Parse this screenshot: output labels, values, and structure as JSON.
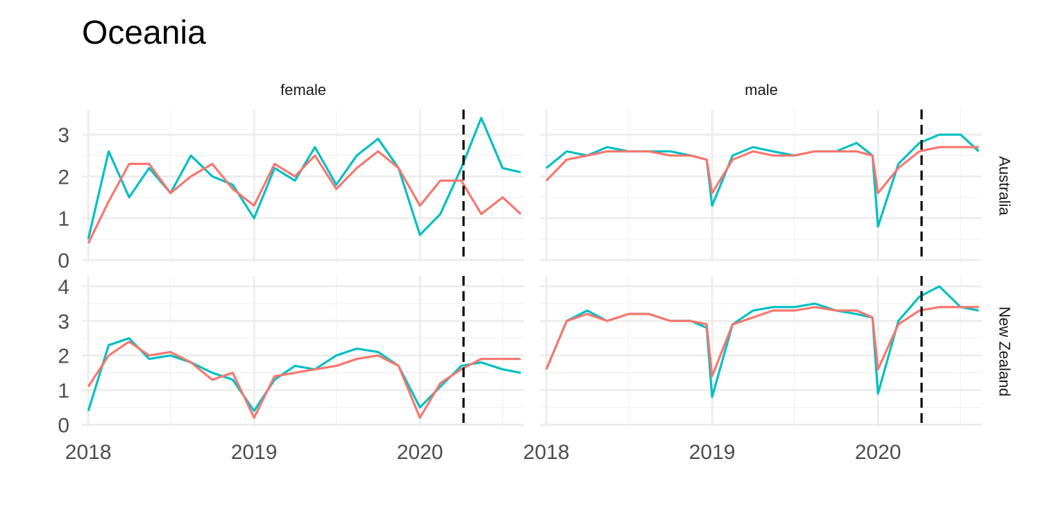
{
  "chart_data": {
    "type": "line",
    "title": "Oceania",
    "facets": {
      "columns": [
        "female",
        "male"
      ],
      "rows": [
        "Australia",
        "New Zealand"
      ]
    },
    "x_tick_labels": [
      "2018",
      "2019",
      "2020"
    ],
    "x_range": [
      "2018-01-01",
      "2020-08-10"
    ],
    "reference_line": {
      "date": "2020-04-06",
      "style": "dashed",
      "color": "#000000"
    },
    "series_colors": [
      "#00BFC4",
      "#F8766D"
    ],
    "panels": [
      {
        "column": "female",
        "row": "Australia",
        "y_ticks": [
          0,
          1,
          2,
          3
        ],
        "ylim": [
          -0.05,
          3.6
        ],
        "x": [
          "2018-01-01",
          "2018-02-15",
          "2018-04-01",
          "2018-05-15",
          "2018-07-01",
          "2018-08-15",
          "2018-10-01",
          "2018-11-15",
          "2019-01-01",
          "2019-02-15",
          "2019-04-01",
          "2019-05-15",
          "2019-07-01",
          "2019-08-15",
          "2019-10-01",
          "2019-11-15",
          "2020-01-01",
          "2020-02-15",
          "2020-04-01",
          "2020-05-15",
          "2020-07-01",
          "2020-08-10"
        ],
        "series": [
          {
            "values": [
              0.5,
              2.6,
              1.5,
              2.2,
              1.6,
              2.5,
              2.0,
              1.8,
              1.0,
              2.2,
              1.9,
              2.7,
              1.8,
              2.5,
              2.9,
              2.2,
              0.6,
              1.1,
              2.2,
              3.4,
              2.2,
              2.1
            ]
          },
          {
            "values": [
              0.4,
              1.4,
              2.3,
              2.3,
              1.6,
              2.0,
              2.3,
              1.7,
              1.3,
              2.3,
              2.0,
              2.5,
              1.7,
              2.2,
              2.6,
              2.2,
              1.3,
              1.9,
              1.9,
              1.1,
              1.5,
              1.1
            ]
          }
        ]
      },
      {
        "column": "male",
        "row": "Australia",
        "y_ticks": [
          0,
          1,
          2,
          3
        ],
        "ylim": [
          -0.05,
          3.6
        ],
        "x": [
          "2018-01-01",
          "2018-02-15",
          "2018-04-01",
          "2018-05-15",
          "2018-07-01",
          "2018-08-15",
          "2018-10-01",
          "2018-11-15",
          "2018-12-20",
          "2019-01-01",
          "2019-02-15",
          "2019-04-01",
          "2019-05-15",
          "2019-07-01",
          "2019-08-15",
          "2019-10-01",
          "2019-11-15",
          "2019-12-20",
          "2020-01-01",
          "2020-02-15",
          "2020-04-01",
          "2020-05-15",
          "2020-07-01",
          "2020-08-10"
        ],
        "series": [
          {
            "values": [
              2.2,
              2.6,
              2.5,
              2.7,
              2.6,
              2.6,
              2.6,
              2.5,
              2.4,
              1.3,
              2.5,
              2.7,
              2.6,
              2.5,
              2.6,
              2.6,
              2.8,
              2.5,
              0.8,
              2.3,
              2.8,
              3.0,
              3.0,
              2.6
            ]
          },
          {
            "values": [
              1.9,
              2.4,
              2.5,
              2.6,
              2.6,
              2.6,
              2.5,
              2.5,
              2.4,
              1.6,
              2.4,
              2.6,
              2.5,
              2.5,
              2.6,
              2.6,
              2.6,
              2.5,
              1.6,
              2.2,
              2.6,
              2.7,
              2.7,
              2.7
            ]
          }
        ]
      },
      {
        "column": "female",
        "row": "New Zealand",
        "y_ticks": [
          0,
          1,
          2,
          3,
          4
        ],
        "ylim": [
          -0.05,
          4.3
        ],
        "x": [
          "2018-01-01",
          "2018-02-15",
          "2018-04-01",
          "2018-05-15",
          "2018-07-01",
          "2018-08-15",
          "2018-10-01",
          "2018-11-15",
          "2019-01-01",
          "2019-02-15",
          "2019-04-01",
          "2019-05-15",
          "2019-07-01",
          "2019-08-15",
          "2019-10-01",
          "2019-11-15",
          "2020-01-01",
          "2020-02-15",
          "2020-04-01",
          "2020-05-15",
          "2020-07-01",
          "2020-08-10"
        ],
        "series": [
          {
            "values": [
              0.4,
              2.3,
              2.5,
              1.9,
              2.0,
              1.8,
              1.5,
              1.3,
              0.4,
              1.3,
              1.7,
              1.6,
              2.0,
              2.2,
              2.1,
              1.7,
              0.5,
              1.1,
              1.7,
              1.8,
              1.6,
              1.5
            ]
          },
          {
            "values": [
              1.1,
              2.0,
              2.4,
              2.0,
              2.1,
              1.8,
              1.3,
              1.5,
              0.2,
              1.4,
              1.5,
              1.6,
              1.7,
              1.9,
              2.0,
              1.7,
              0.2,
              1.2,
              1.6,
              1.9,
              1.9,
              1.9
            ]
          }
        ]
      },
      {
        "column": "male",
        "row": "New Zealand",
        "y_ticks": [
          0,
          1,
          2,
          3,
          4
        ],
        "ylim": [
          -0.05,
          4.3
        ],
        "x": [
          "2018-01-01",
          "2018-02-15",
          "2018-04-01",
          "2018-05-15",
          "2018-07-01",
          "2018-08-15",
          "2018-10-01",
          "2018-11-15",
          "2018-12-20",
          "2019-01-01",
          "2019-02-15",
          "2019-04-01",
          "2019-05-15",
          "2019-07-01",
          "2019-08-15",
          "2019-10-01",
          "2019-11-15",
          "2019-12-20",
          "2020-01-01",
          "2020-02-15",
          "2020-04-01",
          "2020-05-15",
          "2020-07-01",
          "2020-08-10"
        ],
        "series": [
          {
            "values": [
              1.6,
              3.0,
              3.3,
              3.0,
              3.2,
              3.2,
              3.0,
              3.0,
              2.8,
              0.8,
              2.9,
              3.3,
              3.4,
              3.4,
              3.5,
              3.3,
              3.2,
              3.1,
              0.9,
              3.0,
              3.7,
              4.0,
              3.4,
              3.3
            ]
          },
          {
            "values": [
              1.6,
              3.0,
              3.2,
              3.0,
              3.2,
              3.2,
              3.0,
              3.0,
              2.9,
              1.4,
              2.9,
              3.1,
              3.3,
              3.3,
              3.4,
              3.3,
              3.3,
              3.1,
              1.6,
              2.9,
              3.3,
              3.4,
              3.4,
              3.4
            ]
          }
        ]
      }
    ]
  }
}
